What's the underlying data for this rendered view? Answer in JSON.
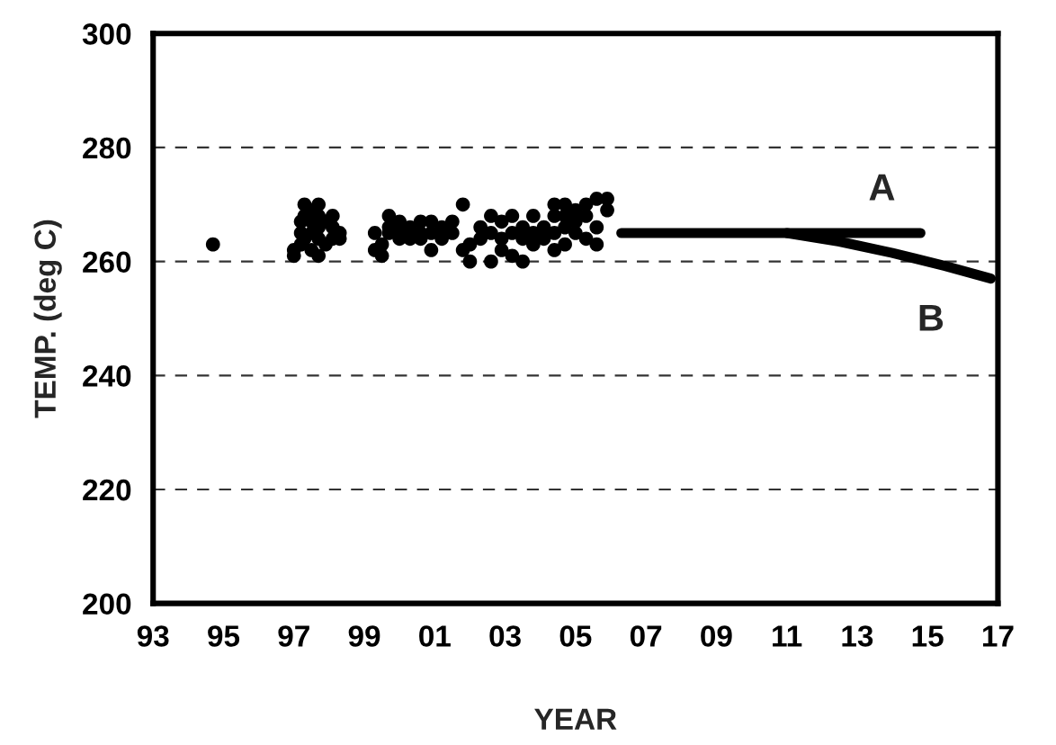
{
  "chart_data": {
    "type": "scatter",
    "xlabel": "YEAR",
    "ylabel": "TEMP. (deg C)",
    "xlim": [
      1993,
      2017
    ],
    "ylim": [
      200,
      300
    ],
    "xticks": [
      {
        "value": 1993,
        "label": "93"
      },
      {
        "value": 1995,
        "label": "95"
      },
      {
        "value": 1997,
        "label": "97"
      },
      {
        "value": 1999,
        "label": "99"
      },
      {
        "value": 2001,
        "label": "01"
      },
      {
        "value": 2003,
        "label": "03"
      },
      {
        "value": 2005,
        "label": "05"
      },
      {
        "value": 2007,
        "label": "07"
      },
      {
        "value": 2009,
        "label": "09"
      },
      {
        "value": 2011,
        "label": "11"
      },
      {
        "value": 2013,
        "label": "13"
      },
      {
        "value": 2015,
        "label": "15"
      },
      {
        "value": 2017,
        "label": "17"
      }
    ],
    "yticks": [
      200,
      220,
      240,
      260,
      280,
      300
    ],
    "grid": "y",
    "legend": false,
    "series": [
      {
        "color": "#000000",
        "marker": "circle",
        "x": [
          1994.7,
          1997,
          1997,
          1997.2,
          1997.2,
          1997.2,
          1997.3,
          1997.3,
          1997.3,
          1997.5,
          1997.5,
          1997.5,
          1997.5,
          1997.7,
          1997.7,
          1997.7,
          1997.7,
          1997.7,
          1997.9,
          1997.9,
          1998.1,
          1998.1,
          1998.1,
          1998.3,
          1998.3,
          1999.3,
          1999.3,
          1999.5,
          1999.5,
          1999.7,
          1999.7,
          1999.7,
          2000,
          2000,
          2000,
          2000.3,
          2000.3,
          2000.6,
          2000.6,
          2000.6,
          2000.9,
          2000.9,
          2000.9,
          2001.2,
          2001.2,
          2001.5,
          2001.5,
          2001.8,
          2001.8,
          2002,
          2002,
          2002.3,
          2002.3,
          2002.6,
          2002.6,
          2002.6,
          2002.9,
          2002.9,
          2002.9,
          2003.2,
          2003.2,
          2003.2,
          2003.5,
          2003.5,
          2003.5,
          2003.8,
          2003.8,
          2003.8,
          2004.1,
          2004.1,
          2004.4,
          2004.4,
          2004.4,
          2004.4,
          2004.7,
          2004.7,
          2004.7,
          2004.7,
          2005,
          2005,
          2005,
          2005.3,
          2005.3,
          2005.3,
          2005.6,
          2005.6,
          2005.6,
          2005.9,
          2005.9
        ],
        "values": [
          263,
          261,
          262,
          263,
          265,
          267,
          268,
          270,
          264,
          262,
          265,
          267,
          269,
          261,
          264,
          266,
          268,
          270,
          263,
          267,
          264,
          266,
          268,
          265,
          264,
          262,
          265,
          261,
          263,
          266,
          268,
          265,
          267,
          264,
          265,
          266,
          264,
          265,
          264,
          267,
          262,
          267,
          265,
          264,
          266,
          267,
          265,
          262,
          270,
          263,
          260,
          266,
          264,
          260,
          268,
          265,
          267,
          262,
          264,
          261,
          265,
          268,
          260,
          266,
          264,
          265,
          268,
          263,
          264,
          266,
          262,
          268,
          270,
          265,
          263,
          266,
          270,
          268,
          265,
          269,
          267,
          264,
          270,
          268,
          263,
          271,
          266,
          269,
          271
        ]
      },
      {
        "type": "line",
        "name": "A",
        "color": "#000000",
        "marker": "none",
        "line_style": "solid",
        "x": [
          2006.3,
          2014.8
        ],
        "values": [
          265,
          265
        ]
      },
      {
        "type": "line",
        "name": "B",
        "color": "#000000",
        "marker": "none",
        "line_style": "solid",
        "x": [
          2011,
          2012.5,
          2014,
          2015.5,
          2016.8
        ],
        "values": [
          265,
          263.5,
          261.5,
          259.2,
          257
        ]
      }
    ]
  }
}
